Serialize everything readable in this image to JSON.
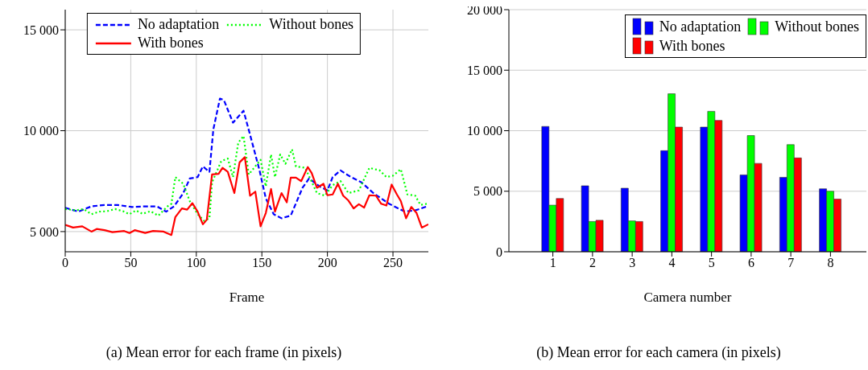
{
  "chart_data": [
    {
      "type": "line",
      "xlabel": "Frame",
      "annotations": [
        "(a) Mean error for each frame (in pixels)"
      ],
      "xlim": [
        0,
        277
      ],
      "xticks": [
        0,
        50,
        100,
        150,
        200,
        250
      ],
      "ylim": [
        4000,
        16000
      ],
      "yticks": [
        {
          "value": 5000,
          "label": "5 000"
        },
        {
          "value": 10000,
          "label": "10 000"
        },
        {
          "value": 15000,
          "label": "15 000"
        }
      ],
      "grid": true,
      "legend": "top",
      "marker": "none",
      "series": [
        {
          "name": "No adaptation",
          "color": "#0000ff",
          "line_style": "dashed",
          "x": [
            0,
            10,
            20,
            30,
            40,
            51,
            61,
            70,
            77,
            83,
            90,
            95,
            101,
            105,
            110,
            113,
            118,
            121,
            128,
            136,
            141,
            148,
            153,
            159,
            165,
            172,
            181,
            186,
            194,
            200,
            204,
            210,
            218,
            226,
            235,
            247,
            259,
            267,
            276
          ],
          "values": [
            6180,
            5990,
            6250,
            6320,
            6320,
            6220,
            6250,
            6250,
            5990,
            6250,
            6900,
            7630,
            7700,
            8230,
            7960,
            10070,
            11590,
            11520,
            10400,
            10990,
            9800,
            8090,
            6650,
            5860,
            5660,
            5790,
            7170,
            7630,
            7240,
            7040,
            7700,
            8030,
            7700,
            7440,
            6910,
            6380,
            5990,
            6050,
            6250
          ]
        },
        {
          "name": "Without bones",
          "color": "#00ff00",
          "line_style": "dotted",
          "x": [
            0,
            8,
            14,
            20,
            26,
            32,
            38,
            44,
            49,
            54,
            59,
            65,
            71,
            78,
            81,
            84,
            90,
            95,
            101,
            106,
            110,
            112,
            119,
            124,
            128,
            132,
            136,
            140,
            149,
            153,
            157,
            160,
            164,
            168,
            173,
            176,
            183,
            192,
            198,
            204,
            210,
            216,
            224,
            232,
            240,
            245,
            250,
            256,
            261,
            267,
            271,
            276
          ],
          "values": [
            6120,
            6050,
            6120,
            5860,
            5990,
            6010,
            6120,
            6010,
            5860,
            6050,
            5880,
            6010,
            5790,
            6250,
            6380,
            7700,
            7370,
            6510,
            5860,
            5530,
            5660,
            7440,
            8490,
            8620,
            7700,
            9410,
            9740,
            7830,
            8560,
            7240,
            8820,
            7700,
            8820,
            8360,
            9080,
            8230,
            8160,
            6910,
            6780,
            7300,
            7500,
            6910,
            7040,
            8160,
            8030,
            7700,
            7770,
            8090,
            6840,
            6780,
            6320,
            6380
          ]
        },
        {
          "name": "With bones",
          "color": "#ff0000",
          "line_style": "solid",
          "x": [
            0,
            6,
            13,
            20,
            24,
            30,
            36,
            45,
            49,
            53,
            61,
            67,
            75,
            81,
            84,
            89,
            93,
            97,
            101,
            105,
            108,
            112,
            117,
            120,
            124,
            129,
            133,
            137,
            141,
            145,
            149,
            153,
            157,
            160,
            165,
            169,
            172,
            176,
            180,
            185,
            188,
            192,
            197,
            200,
            204,
            208,
            212,
            216,
            220,
            224,
            228,
            232,
            237,
            241,
            245,
            249,
            253,
            256,
            260,
            264,
            268,
            272,
            277
          ],
          "values": [
            5330,
            5200,
            5260,
            5000,
            5130,
            5070,
            4970,
            5030,
            4930,
            5070,
            4930,
            5030,
            5000,
            4830,
            5720,
            6150,
            6090,
            6410,
            5990,
            5360,
            5590,
            7830,
            7860,
            8160,
            7960,
            6910,
            8430,
            8690,
            6780,
            6980,
            5260,
            5920,
            7110,
            5990,
            6910,
            6450,
            7670,
            7670,
            7500,
            8200,
            7900,
            7170,
            7370,
            6800,
            6840,
            7370,
            6780,
            6540,
            6150,
            6360,
            6190,
            6800,
            6780,
            6380,
            6290,
            7330,
            6840,
            6510,
            5660,
            6220,
            5920,
            5200,
            5360
          ]
        }
      ]
    },
    {
      "type": "bar",
      "xlabel": "Camera number",
      "annotations": [
        "(b) Mean error for each camera (in pixels)"
      ],
      "categories": [
        "1",
        "2",
        "3",
        "4",
        "5",
        "6",
        "7",
        "8"
      ],
      "ylim": [
        0,
        20000
      ],
      "yticks": [
        0,
        {
          "value": 5000,
          "label": "5 000"
        },
        {
          "value": 10000,
          "label": "10 000"
        },
        {
          "value": 15000,
          "label": "15 000"
        },
        {
          "value": 20000,
          "label": "20 000"
        }
      ],
      "grid": "y",
      "legend": "top right",
      "series": [
        {
          "name": "No adaptation",
          "color": "#0000ff",
          "values": [
            10350,
            5450,
            5250,
            8350,
            10300,
            6350,
            6150,
            5200
          ]
        },
        {
          "name": "Without bones",
          "color": "#00ff00",
          "values": [
            3850,
            2500,
            2550,
            13050,
            11600,
            9600,
            8850,
            5000
          ]
        },
        {
          "name": "With bones",
          "color": "#ff0000",
          "values": [
            4400,
            2600,
            2500,
            10300,
            10850,
            7300,
            7750,
            4350
          ]
        }
      ]
    }
  ]
}
